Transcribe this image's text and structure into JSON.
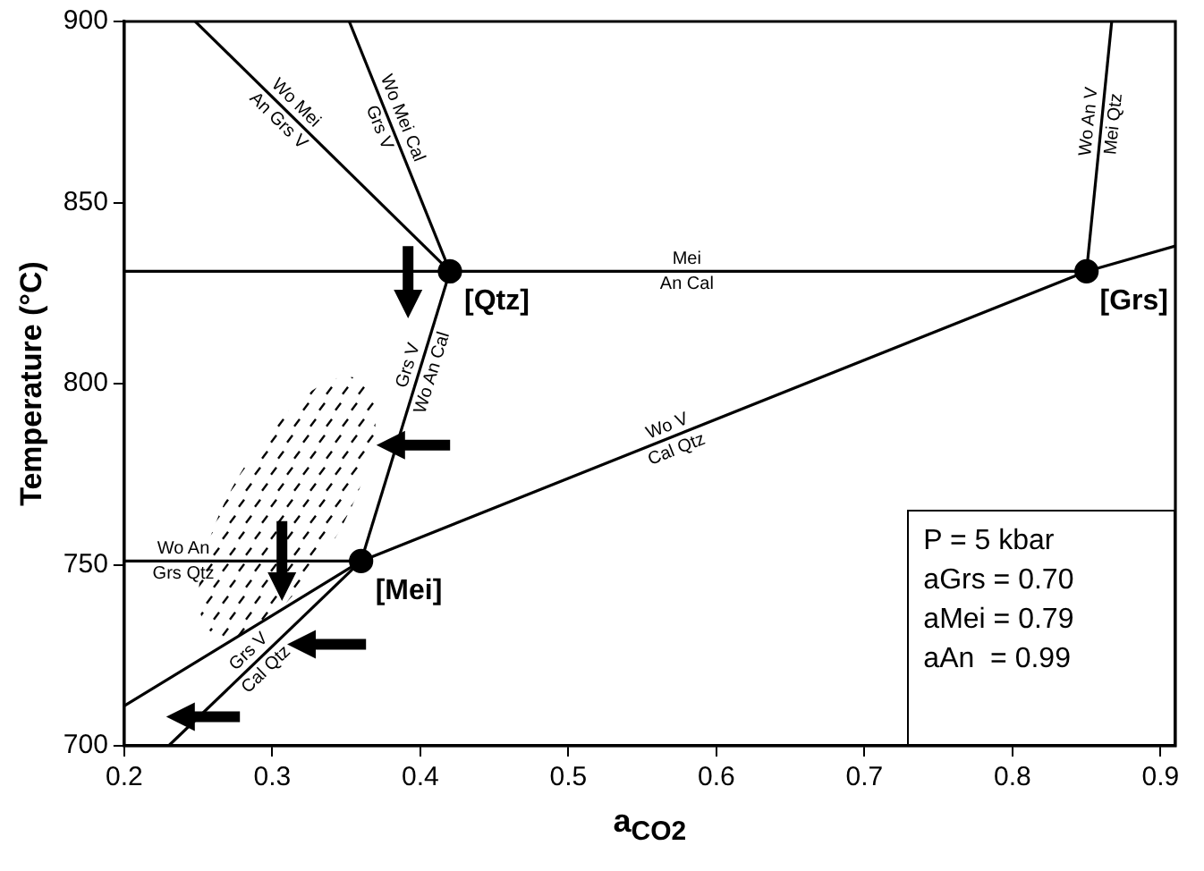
{
  "chart_data": {
    "type": "line",
    "xlabel": "a$_{CO2}$",
    "ylabel": "Temperature (°C)",
    "xlim": [
      0.2,
      0.91
    ],
    "ylim": [
      700,
      900
    ],
    "xticks": [
      0.2,
      0.3,
      0.4,
      0.5,
      0.6,
      0.7,
      0.8,
      0.9
    ],
    "yticks": [
      700,
      750,
      800,
      850,
      900
    ],
    "grid": false,
    "legend": false,
    "marker": "none",
    "line_style": "solid",
    "series": [
      {
        "color": "#000000",
        "x": [
          0.2,
          0.85
        ],
        "values": [
          831,
          831
        ]
      },
      {
        "color": "#000000",
        "x": [
          0.2,
          0.36,
          0.85,
          0.91
        ],
        "values": [
          711,
          751,
          831,
          838
        ]
      },
      {
        "color": "#000000",
        "x": [
          0.23,
          0.36
        ],
        "values": [
          700,
          751
        ]
      },
      {
        "color": "#000000",
        "x": [
          0.2,
          0.36
        ],
        "values": [
          751,
          751
        ]
      },
      {
        "color": "#000000",
        "x": [
          0.36,
          0.42
        ],
        "values": [
          751,
          831
        ]
      },
      {
        "color": "#000000",
        "x": [
          0.248,
          0.42
        ],
        "values": [
          900,
          831
        ]
      },
      {
        "color": "#000000",
        "x": [
          0.352,
          0.42
        ],
        "values": [
          900,
          831
        ]
      },
      {
        "color": "#000000",
        "x": [
          0.867,
          0.85
        ],
        "values": [
          900,
          831
        ]
      },
      {
        "type": "scatter",
        "marker": "circle",
        "color": "#000000",
        "x": [
          0.42,
          0.36,
          0.85
        ],
        "values": [
          831,
          751,
          831
        ]
      }
    ],
    "annotations": [
      {
        "text": "[Qtz]",
        "x": 0.42,
        "y": 831
      },
      {
        "text": "[Mei]",
        "x": 0.36,
        "y": 751
      },
      {
        "text": "[Grs]",
        "x": 0.85,
        "y": 831
      },
      {
        "text": "Wo Mei\nAn Grs V",
        "x": 0.31,
        "y": 875
      },
      {
        "text": "Wo Mei Cal\nGrs V",
        "x": 0.38,
        "y": 872
      },
      {
        "text": "Mei\nAn Cal",
        "x": 0.58,
        "y": 831
      },
      {
        "text": "Wo An V\nMei Qtz",
        "x": 0.86,
        "y": 872
      },
      {
        "text": "Grs V\nWo An Cal",
        "x": 0.4,
        "y": 804
      },
      {
        "text": "Wo V\nCal Qtz",
        "x": 0.57,
        "y": 785
      },
      {
        "text": "Wo An\nGrs Qtz",
        "x": 0.24,
        "y": 751
      },
      {
        "text": "Grs V\nCal Qtz",
        "x": 0.29,
        "y": 723.5
      },
      "P = 5 kbar",
      "aGrs = 0.70",
      "aMei = 0.79",
      "aAn  = 0.99"
    ]
  }
}
